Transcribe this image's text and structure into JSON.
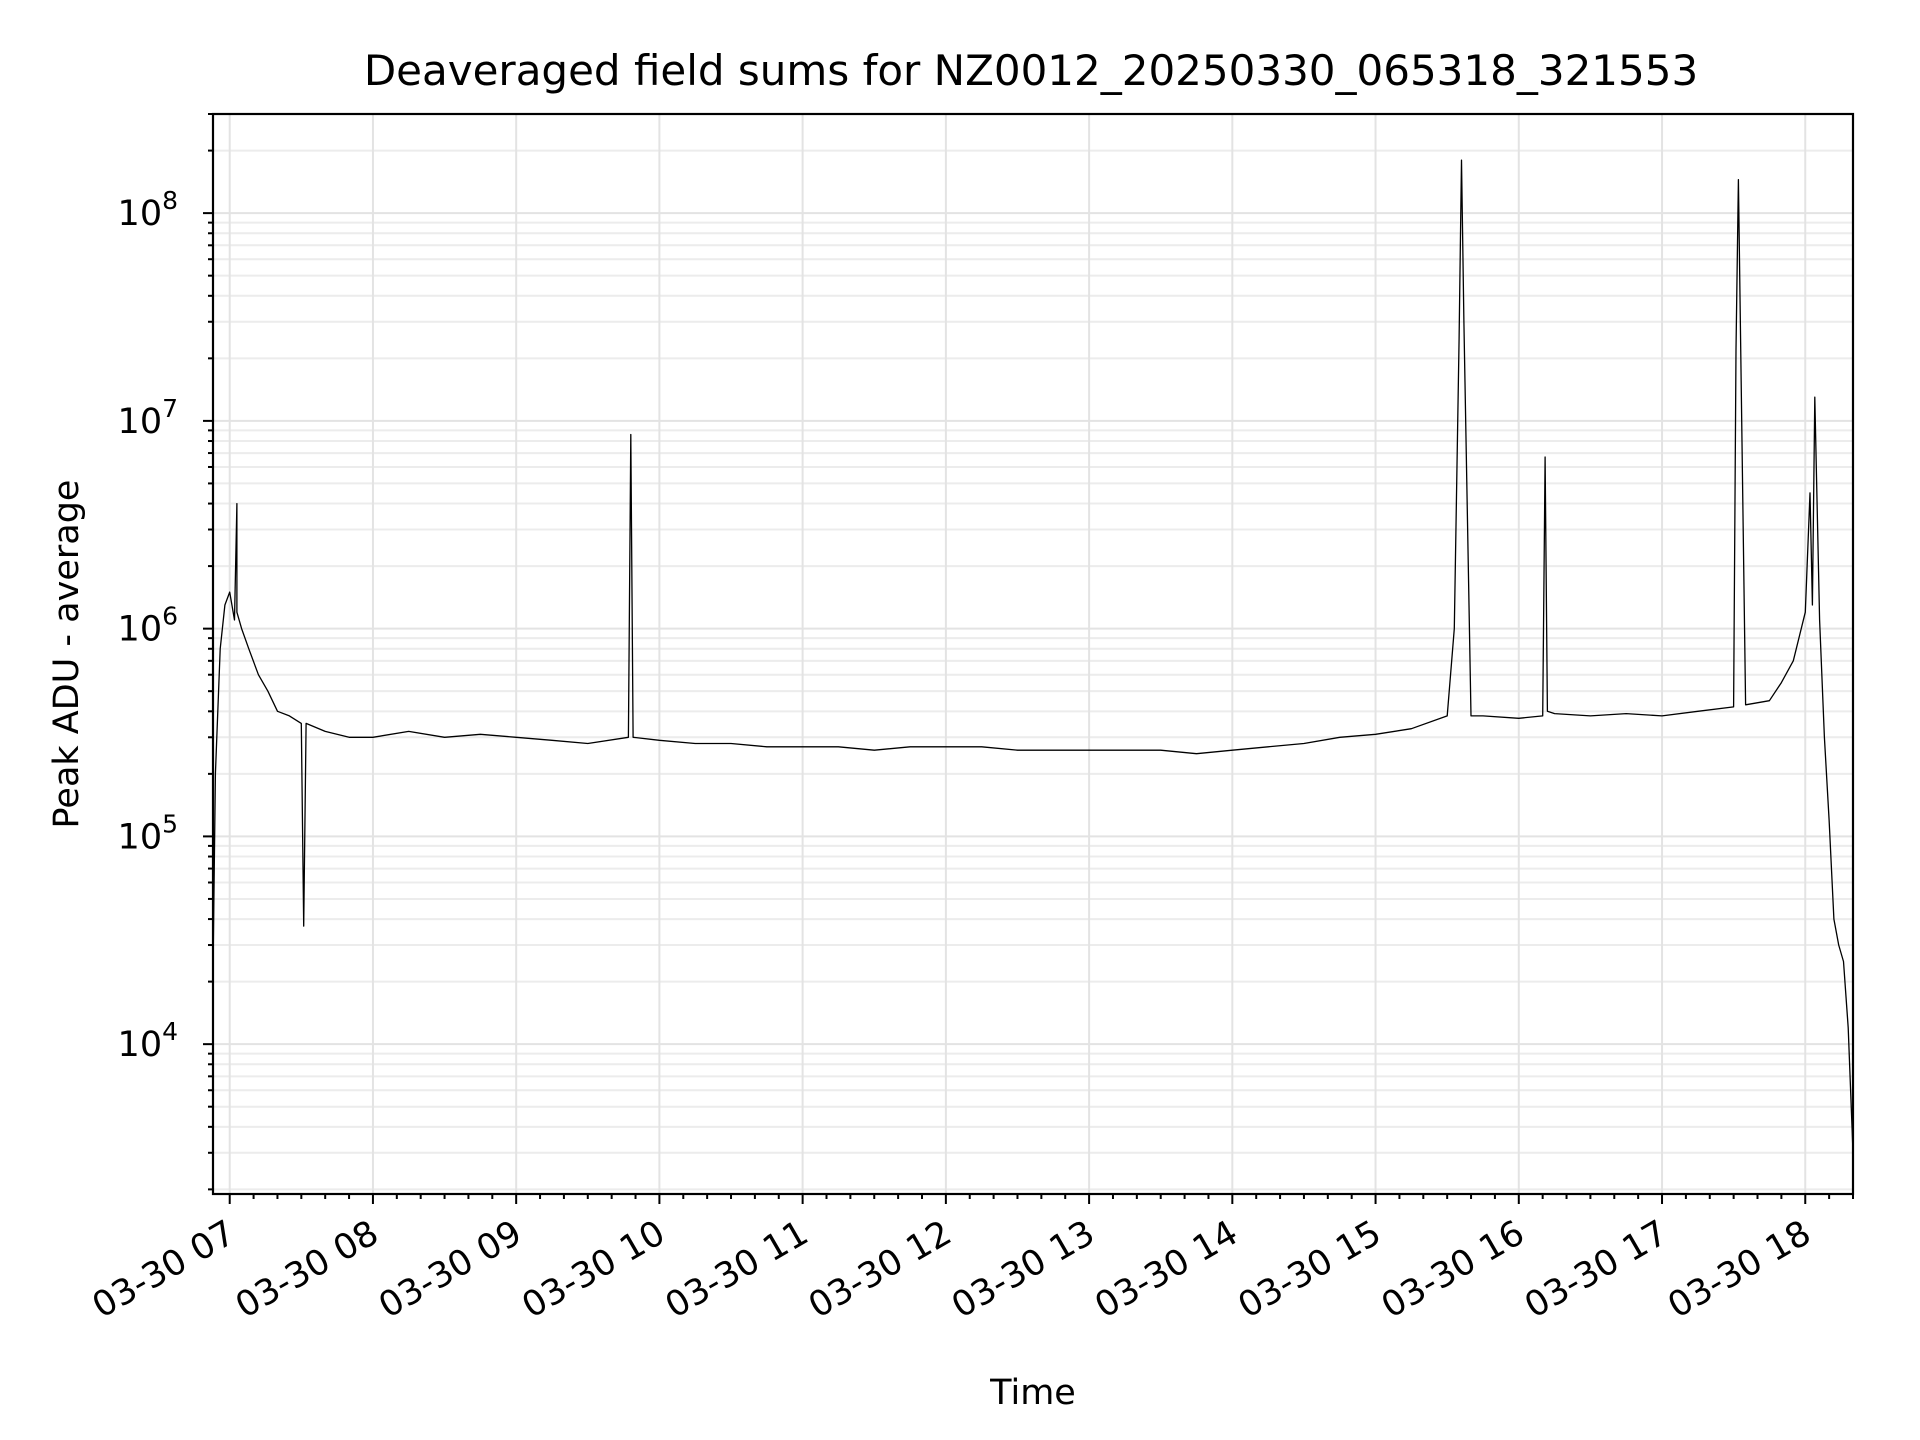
{
  "chart_data": {
    "type": "line",
    "title": "Deaveraged field sums for NZ0012_20250330_065318_321553",
    "xlabel": "Time",
    "ylabel": "Peak ADU - average",
    "y_scale": "log",
    "ylim": [
      1900,
      300000000
    ],
    "y_major_ticks": [
      {
        "value": 10000,
        "base": "10",
        "exp": "4"
      },
      {
        "value": 100000,
        "base": "10",
        "exp": "5"
      },
      {
        "value": 1000000,
        "base": "10",
        "exp": "6"
      },
      {
        "value": 10000000,
        "base": "10",
        "exp": "7"
      },
      {
        "value": 100000000,
        "base": "10",
        "exp": "8"
      }
    ],
    "xlim": [
      "2025-03-30 06:53",
      "2025-03-30 18:20"
    ],
    "x_ticks": [
      {
        "hour": 7,
        "label": "03-30 07"
      },
      {
        "hour": 8,
        "label": "03-30 08"
      },
      {
        "hour": 9,
        "label": "03-30 09"
      },
      {
        "hour": 10,
        "label": "03-30 10"
      },
      {
        "hour": 11,
        "label": "03-30 11"
      },
      {
        "hour": 12,
        "label": "03-30 12"
      },
      {
        "hour": 13,
        "label": "03-30 13"
      },
      {
        "hour": 14,
        "label": "03-30 14"
      },
      {
        "hour": 15,
        "label": "03-30 15"
      },
      {
        "hour": 16,
        "label": "03-30 16"
      },
      {
        "hour": 17,
        "label": "03-30 17"
      },
      {
        "hour": 18,
        "label": "03-30 18"
      }
    ],
    "grid": true,
    "line_color": "#000000",
    "series": [
      {
        "x": [
          "2025-03-30 06:53",
          "2025-03-30 06:54",
          "2025-03-30 06:56",
          "2025-03-30 06:58",
          "2025-03-30 07:00",
          "2025-03-30 07:02",
          "2025-03-30 07:03",
          "2025-03-30 07:03",
          "2025-03-30 07:05",
          "2025-03-30 07:08",
          "2025-03-30 07:12",
          "2025-03-30 07:16",
          "2025-03-30 07:20",
          "2025-03-30 07:25",
          "2025-03-30 07:30",
          "2025-03-30 07:31",
          "2025-03-30 07:32",
          "2025-03-30 07:40",
          "2025-03-30 07:50",
          "2025-03-30 08:00",
          "2025-03-30 08:15",
          "2025-03-30 08:30",
          "2025-03-30 08:45",
          "2025-03-30 09:00",
          "2025-03-30 09:15",
          "2025-03-30 09:30",
          "2025-03-30 09:47",
          "2025-03-30 09:48",
          "2025-03-30 09:49",
          "2025-03-30 10:00",
          "2025-03-30 10:15",
          "2025-03-30 10:30",
          "2025-03-30 10:45",
          "2025-03-30 11:00",
          "2025-03-30 11:15",
          "2025-03-30 11:30",
          "2025-03-30 11:45",
          "2025-03-30 12:00",
          "2025-03-30 12:15",
          "2025-03-30 12:30",
          "2025-03-30 12:45",
          "2025-03-30 13:00",
          "2025-03-30 13:15",
          "2025-03-30 13:30",
          "2025-03-30 13:45",
          "2025-03-30 14:00",
          "2025-03-30 14:15",
          "2025-03-30 14:30",
          "2025-03-30 14:45",
          "2025-03-30 15:00",
          "2025-03-30 15:15",
          "2025-03-30 15:30",
          "2025-03-30 15:33",
          "2025-03-30 15:35",
          "2025-03-30 15:36",
          "2025-03-30 15:37",
          "2025-03-30 15:40",
          "2025-03-30 15:45",
          "2025-03-30 16:00",
          "2025-03-30 16:10",
          "2025-03-30 16:11",
          "2025-03-30 16:12",
          "2025-03-30 16:15",
          "2025-03-30 16:30",
          "2025-03-30 16:45",
          "2025-03-30 17:00",
          "2025-03-30 17:15",
          "2025-03-30 17:30",
          "2025-03-30 17:31",
          "2025-03-30 17:32",
          "2025-03-30 17:35",
          "2025-03-30 17:45",
          "2025-03-30 17:50",
          "2025-03-30 17:55",
          "2025-03-30 18:00",
          "2025-03-30 18:02",
          "2025-03-30 18:03",
          "2025-03-30 18:04",
          "2025-03-30 18:06",
          "2025-03-30 18:08",
          "2025-03-30 18:10",
          "2025-03-30 18:12",
          "2025-03-30 18:14",
          "2025-03-30 18:16",
          "2025-03-30 18:18",
          "2025-03-30 18:20"
        ],
        "y": [
          22000,
          200000,
          800000,
          1300000,
          1500000,
          1100000,
          4000000,
          1200000,
          1000000,
          800000,
          600000,
          500000,
          400000,
          380000,
          350000,
          37000,
          350000,
          320000,
          300000,
          300000,
          320000,
          300000,
          310000,
          300000,
          290000,
          280000,
          300000,
          8600000,
          300000,
          290000,
          280000,
          280000,
          270000,
          270000,
          270000,
          260000,
          270000,
          270000,
          270000,
          260000,
          260000,
          260000,
          260000,
          260000,
          250000,
          260000,
          270000,
          280000,
          300000,
          310000,
          330000,
          380000,
          1000000,
          25000000,
          180000000,
          30000000,
          380000,
          380000,
          370000,
          380000,
          6700000,
          400000,
          390000,
          380000,
          390000,
          380000,
          400000,
          420000,
          22000000,
          145000000,
          430000,
          450000,
          550000,
          700000,
          1200000,
          4500000,
          1300000,
          13000000,
          1100000,
          300000,
          120000,
          40000,
          30000,
          25000,
          12000,
          3000
        ]
      }
    ]
  }
}
